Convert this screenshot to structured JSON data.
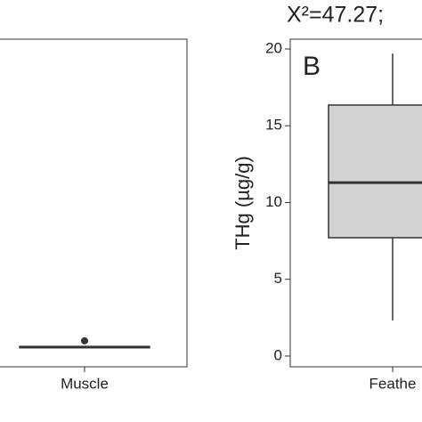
{
  "chart_data": [
    {
      "type": "box",
      "categories": [
        "Muscle"
      ],
      "boxes": [
        {
          "low": 0.52,
          "q1": 0.55,
          "median": 0.58,
          "q3": 0.62,
          "high": 0.66,
          "outliers": [
            0.99
          ]
        }
      ],
      "ylim": [
        -0.7,
        20.64
      ],
      "color": "#d3d3d3"
    },
    {
      "type": "box",
      "title": "X²=47.27;",
      "panel_label": "B",
      "y_label": "THg (µg/g)",
      "categories": [
        "Feathe"
      ],
      "boxes": [
        {
          "low": 2.32,
          "q1": 7.71,
          "median": 11.3,
          "q3": 16.35,
          "high": 19.7,
          "outliers": []
        }
      ],
      "ylim": [
        -0.7,
        20.64
      ],
      "yticks": [
        0,
        5,
        10,
        15,
        20
      ],
      "color": "#d3d3d3"
    }
  ]
}
